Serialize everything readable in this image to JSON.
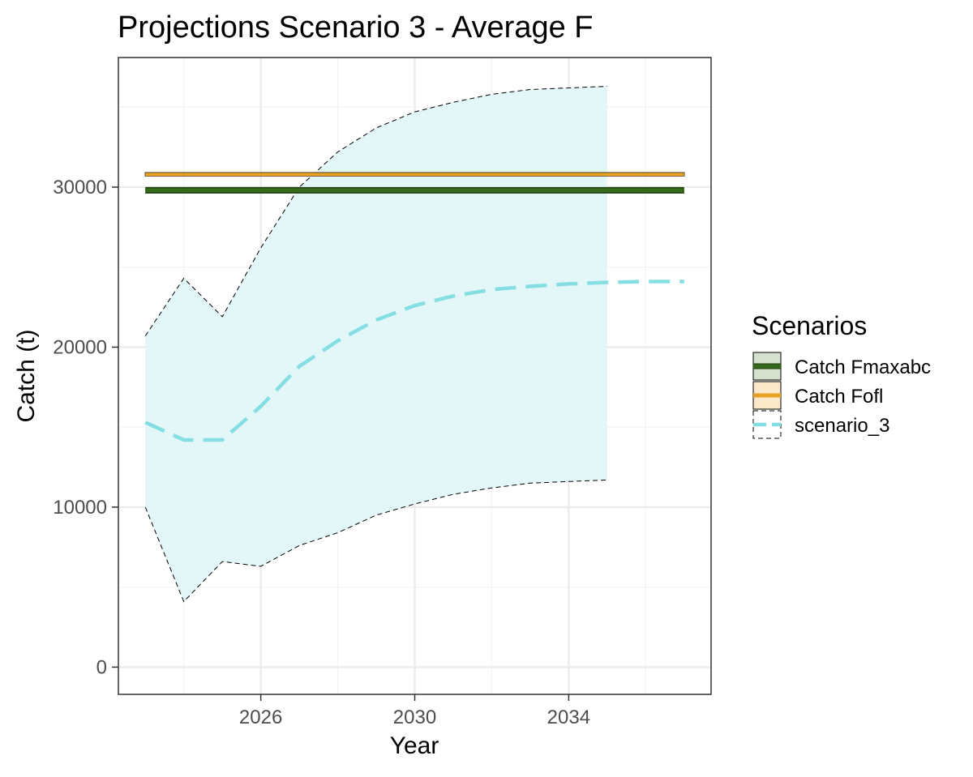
{
  "chart_data": {
    "type": "line",
    "title": "Projections Scenario 3 - Average F",
    "xlabel": "Year",
    "ylabel": "Catch (t)",
    "xlim": [
      2022.3,
      2037.7
    ],
    "ylim": [
      -1700,
      38100
    ],
    "x_ticks": [
      2026,
      2030,
      2034
    ],
    "x_tick_labels": [
      "2026",
      "2030",
      "2034"
    ],
    "y_ticks": [
      0,
      10000,
      20000,
      30000
    ],
    "y_tick_labels": [
      "0",
      "10000",
      "20000",
      "30000"
    ],
    "grid": true,
    "legend": {
      "title": "Scenarios",
      "position": "right",
      "entries": [
        "Catch Fmaxabc",
        "Catch Fofl",
        "scenario_3"
      ]
    },
    "series": [
      {
        "name": "Catch Fmaxabc",
        "style": "solid",
        "color": "#356a1a",
        "x": [
          2023,
          2037
        ],
        "y": [
          29800,
          29800
        ]
      },
      {
        "name": "Catch Fofl",
        "style": "solid",
        "color": "#e8a125",
        "x": [
          2023,
          2037
        ],
        "y": [
          30800,
          30800
        ]
      },
      {
        "name": "scenario_3",
        "style": "dashed",
        "color": "#85dfe2",
        "x": [
          2023,
          2024,
          2025,
          2026,
          2027,
          2028,
          2029,
          2030,
          2031,
          2032,
          2033,
          2034,
          2035,
          2036,
          2037
        ],
        "y": [
          15300,
          14200,
          14200,
          16300,
          18800,
          20400,
          21700,
          22600,
          23200,
          23600,
          23800,
          23950,
          24050,
          24100,
          24100
        ]
      }
    ],
    "ribbon": {
      "series": "scenario_3",
      "x": [
        2023,
        2024,
        2025,
        2026,
        2027,
        2028,
        2029,
        2030,
        2031,
        2032,
        2033,
        2034,
        2035
      ],
      "lower": [
        10000,
        4100,
        6600,
        6300,
        7600,
        8400,
        9500,
        10200,
        10800,
        11200,
        11500,
        11600,
        11700
      ],
      "upper": [
        20700,
        24300,
        21900,
        26200,
        30000,
        32200,
        33700,
        34700,
        35300,
        35800,
        36100,
        36200,
        36300
      ]
    },
    "band": {
      "series": "Catch Fofl",
      "lower": 30700,
      "upper": 30900
    }
  },
  "colors": {
    "fmaxabc": "#356a1a",
    "fmaxabc_fill": "#d6e0ce",
    "fofl": "#e8a125",
    "fofl_fill": "#fbe8c8",
    "scenario": "#85dfe2",
    "ribbon_fill": "#e3f7f9",
    "grid_major": "#ebebeb",
    "grid_minor": "#f3f3f3",
    "panel_border": "#333333"
  }
}
